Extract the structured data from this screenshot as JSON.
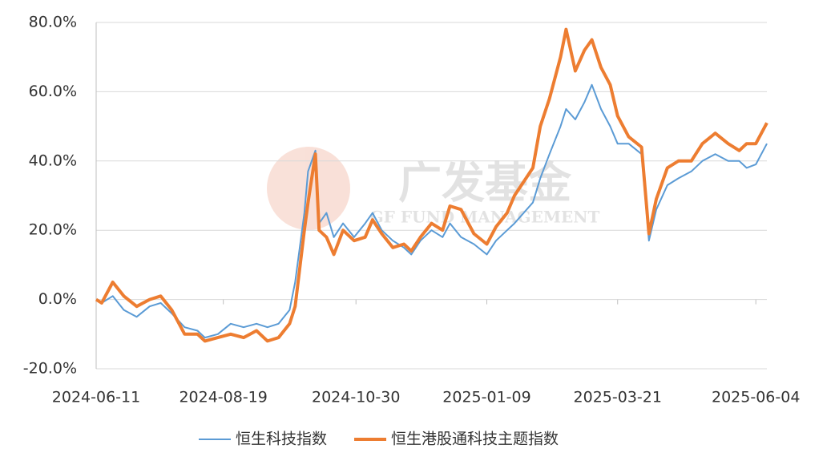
{
  "chart_data": {
    "type": "line",
    "watermark": {
      "title": "广发基金",
      "subtitle": "GF FUND MANAGEMENT"
    },
    "x": [
      "2024-06-11",
      "2024-06-14",
      "2024-06-20",
      "2024-06-26",
      "2024-07-03",
      "2024-07-10",
      "2024-07-16",
      "2024-07-22",
      "2024-07-29",
      "2024-08-05",
      "2024-08-09",
      "2024-08-16",
      "2024-08-23",
      "2024-08-30",
      "2024-09-06",
      "2024-09-12",
      "2024-09-18",
      "2024-09-24",
      "2024-09-27",
      "2024-10-02",
      "2024-10-04",
      "2024-10-08",
      "2024-10-10",
      "2024-10-14",
      "2024-10-18",
      "2024-10-23",
      "2024-10-29",
      "2024-11-04",
      "2024-11-08",
      "2024-11-13",
      "2024-11-19",
      "2024-11-25",
      "2024-11-29",
      "2024-12-04",
      "2024-12-10",
      "2024-12-16",
      "2024-12-20",
      "2024-12-26",
      "2025-01-02",
      "2025-01-09",
      "2025-01-14",
      "2025-01-20",
      "2025-01-24",
      "2025-02-03",
      "2025-02-07",
      "2025-02-12",
      "2025-02-18",
      "2025-02-21",
      "2025-02-26",
      "2025-03-03",
      "2025-03-07",
      "2025-03-12",
      "2025-03-17",
      "2025-03-21",
      "2025-03-27",
      "2025-04-03",
      "2025-04-07",
      "2025-04-11",
      "2025-04-17",
      "2025-04-23",
      "2025-04-30",
      "2025-05-06",
      "2025-05-13",
      "2025-05-20",
      "2025-05-26",
      "2025-05-30",
      "2025-06-04",
      "2025-06-10"
    ],
    "series": [
      {
        "name": "恒生科技指数",
        "color": "#5b9bd5",
        "width": 2,
        "values": [
          0,
          -1,
          1,
          -3,
          -5,
          -2,
          -1,
          -4,
          -8,
          -9,
          -11,
          -10,
          -7,
          -8,
          -7,
          -8,
          -7,
          -3,
          5,
          25,
          37,
          43,
          22,
          25,
          18,
          22,
          18,
          22,
          25,
          20,
          17,
          15,
          13,
          17,
          20,
          18,
          22,
          18,
          16,
          13,
          17,
          20,
          22,
          28,
          35,
          42,
          50,
          55,
          52,
          57,
          62,
          55,
          50,
          45,
          45,
          42,
          17,
          26,
          33,
          35,
          37,
          40,
          42,
          40,
          40,
          38,
          39,
          45
        ]
      },
      {
        "name": "恒生港股通科技主题指数",
        "color": "#ed7d31",
        "width": 4,
        "values": [
          0,
          -1,
          5,
          1,
          -2,
          0,
          1,
          -3,
          -10,
          -10,
          -12,
          -11,
          -10,
          -11,
          -9,
          -12,
          -11,
          -7,
          -2,
          20,
          28,
          42,
          20,
          18,
          13,
          20,
          17,
          18,
          23,
          19,
          15,
          16,
          14,
          18,
          22,
          20,
          27,
          26,
          19,
          16,
          21,
          25,
          30,
          38,
          50,
          58,
          70,
          78,
          66,
          72,
          75,
          67,
          62,
          53,
          47,
          44,
          19,
          29,
          38,
          40,
          40,
          45,
          48,
          45,
          43,
          45,
          45,
          51
        ]
      }
    ],
    "xlim": [
      "2024-06-11",
      "2025-06-10"
    ],
    "xticks": [
      "2024-06-11",
      "2024-08-19",
      "2024-10-30",
      "2025-01-09",
      "2025-03-21",
      "2025-06-04"
    ],
    "ylim": [
      -20,
      80
    ],
    "yticks": [
      {
        "value": -20,
        "label": "-20.0%"
      },
      {
        "value": 0,
        "label": "0.0%"
      },
      {
        "value": 20,
        "label": "20.0%"
      },
      {
        "value": 40,
        "label": "40.0%"
      },
      {
        "value": 60,
        "label": "60.0%"
      },
      {
        "value": 80,
        "label": "80.0%"
      }
    ],
    "grid": true
  }
}
